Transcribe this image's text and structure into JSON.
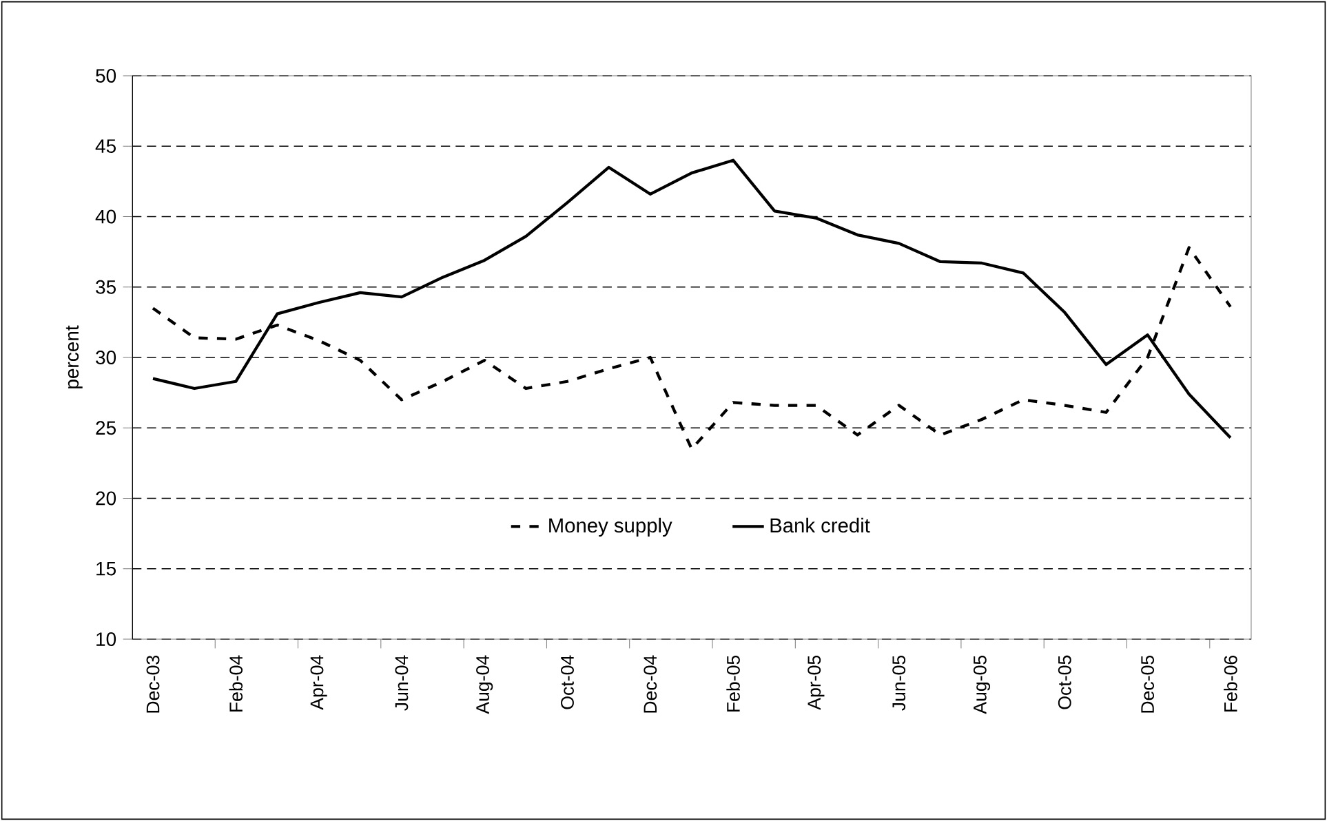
{
  "chart_data": {
    "type": "line",
    "ylabel": "percent",
    "categories": [
      "Dec-03",
      null,
      "Feb-04",
      null,
      "Apr-04",
      null,
      "Jun-04",
      null,
      "Aug-04",
      null,
      "Oct-04",
      null,
      "Dec-04",
      null,
      "Feb-05",
      null,
      "Apr-05",
      null,
      "Jun-05",
      null,
      "Aug-05",
      null,
      "Oct-05",
      null,
      "Dec-05",
      null,
      "Feb-06"
    ],
    "series": [
      {
        "name": "Money supply",
        "color": "#000000",
        "line_style": "dashed",
        "values": [
          33.5,
          31.4,
          31.3,
          32.3,
          31.2,
          29.8,
          27.0,
          28.3,
          29.8,
          27.8,
          28.3,
          29.2,
          30.0,
          23.5,
          26.8,
          26.6,
          26.6,
          24.5,
          26.6,
          24.5,
          25.6,
          27.0,
          26.6,
          26.1,
          30.0,
          37.8,
          33.6
        ]
      },
      {
        "name": "Bank credit",
        "color": "#000000",
        "line_style": "solid",
        "values": [
          28.5,
          27.8,
          28.3,
          33.1,
          33.9,
          34.6,
          34.3,
          35.7,
          36.9,
          38.6,
          41.0,
          43.5,
          41.6,
          43.1,
          44.0,
          40.4,
          39.9,
          38.7,
          38.1,
          36.8,
          36.7,
          36.0,
          33.2,
          29.5,
          31.6,
          27.4,
          24.3
        ]
      }
    ],
    "ylim": [
      10,
      50
    ],
    "yticks": [
      10,
      15,
      20,
      25,
      30,
      35,
      40,
      45,
      50
    ],
    "grid": "y",
    "legend": "bottom",
    "marker": "none"
  }
}
